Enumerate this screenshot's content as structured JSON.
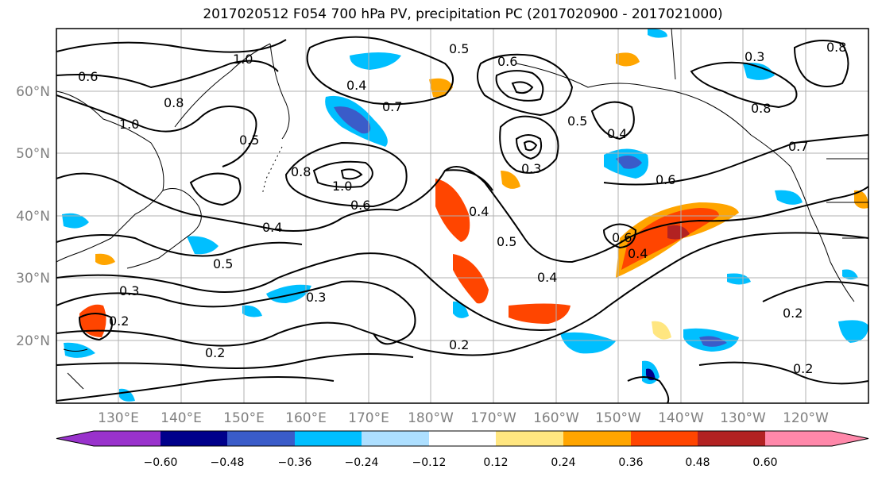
{
  "title": "2017020512 F054 700 hPa PV, precipitation PC (2017020900 - 2017021000)",
  "lat_labels": [
    "60°N",
    "50°N",
    "40°N",
    "30°N",
    "20°N"
  ],
  "lon_labels": [
    "130°E",
    "140°E",
    "150°E",
    "160°E",
    "170°E",
    "180°W",
    "170°W",
    "160°W",
    "150°W",
    "140°W",
    "130°W",
    "120°W"
  ],
  "contour_labels": [
    "1.0",
    "0.6",
    "0.8",
    "1.0",
    "0.5",
    "0.5",
    "0.4",
    "0.7",
    "0.3",
    "0.6",
    "0.8",
    "1.0",
    "0.6",
    "0.4",
    "0.5",
    "0.4",
    "0.5",
    "0.4",
    "0.3",
    "0.2",
    "0.6",
    "0.4",
    "0.2",
    "0.3",
    "0.2",
    "0.2",
    "0.2",
    "0.6",
    "0.7",
    "0.8",
    "0.3",
    "0.8",
    "0.5",
    "0.4"
  ],
  "colorbar": {
    "tick_labels": [
      "−0.60",
      "−0.48",
      "−0.36",
      "−0.24",
      "−0.12",
      "0.12",
      "0.24",
      "0.36",
      "0.48",
      "0.60"
    ],
    "colors": [
      "#9932CC",
      "#00008B",
      "#3A5CC9",
      "#00BFFF",
      "#ADDFFF",
      "#FFFFFF",
      "#FFE680",
      "#FFA500",
      "#FF4500",
      "#B22222",
      "#FF88AA"
    ]
  },
  "colors": {
    "gridline": "#b0b0b0",
    "coast": "#000000",
    "tick_text": "#808080"
  }
}
